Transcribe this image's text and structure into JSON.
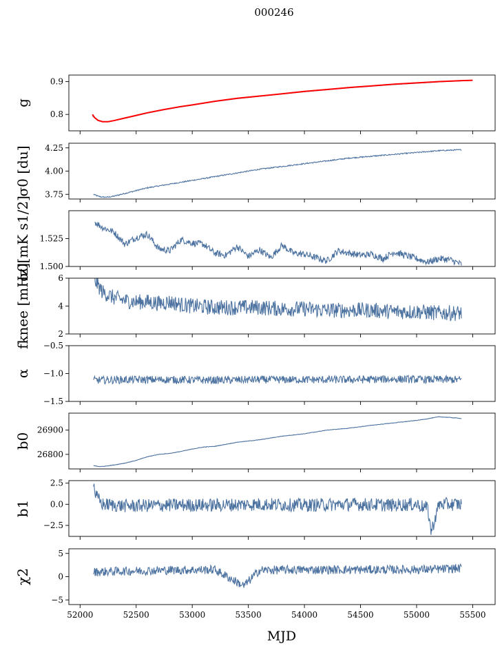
{
  "figure": {
    "title": "000246",
    "xlabel": "MJD",
    "xlim": [
      51900,
      55700
    ],
    "xticks": [
      52000,
      52500,
      53000,
      53500,
      54000,
      54500,
      55000,
      55500
    ],
    "line_color": "#4c72a0",
    "fit_color": "#ff0000"
  },
  "chart_data": [
    {
      "type": "line",
      "ylabel": "g",
      "ylim": [
        0.75,
        0.92
      ],
      "yticks": [
        0.8,
        0.9
      ],
      "ytick_labels": [
        "0.8",
        "0.9"
      ],
      "series": [
        {
          "name": "",
          "color": "#4c72a0",
          "x": [
            52110,
            52130,
            52160,
            52200,
            52250,
            52300,
            52400,
            52500,
            52600,
            52750,
            52900,
            53000,
            53200,
            53400,
            53600,
            53800,
            54000,
            54200,
            54400,
            54600,
            54800,
            55000,
            55200,
            55400
          ],
          "y": [
            0.795,
            0.79,
            0.782,
            0.778,
            0.778,
            0.781,
            0.788,
            0.796,
            0.804,
            0.814,
            0.823,
            0.828,
            0.839,
            0.848,
            0.855,
            0.862,
            0.869,
            0.875,
            0.881,
            0.886,
            0.891,
            0.895,
            0.899,
            0.902
          ]
        },
        {
          "name": "",
          "color": "#ff0000",
          "x": [
            52110,
            52130,
            52160,
            52200,
            52250,
            52300,
            52400,
            52500,
            52600,
            52750,
            52900,
            53000,
            53200,
            53400,
            53600,
            53800,
            54000,
            54200,
            54400,
            54600,
            54800,
            55000,
            55200,
            55400,
            55500
          ],
          "y": [
            0.8,
            0.79,
            0.782,
            0.778,
            0.778,
            0.781,
            0.789,
            0.797,
            0.805,
            0.815,
            0.824,
            0.829,
            0.84,
            0.849,
            0.856,
            0.863,
            0.87,
            0.876,
            0.882,
            0.887,
            0.892,
            0.896,
            0.9,
            0.903,
            0.904
          ]
        }
      ]
    },
    {
      "type": "line",
      "ylabel": "σ0 [du]",
      "ylim": [
        3.7,
        4.3
      ],
      "yticks": [
        3.75,
        4.0,
        4.25
      ],
      "ytick_labels": [
        "3.75",
        "4.00",
        "4.25"
      ],
      "series": [
        {
          "name": "",
          "color": "#4c72a0",
          "x": [
            52120,
            52160,
            52200,
            52250,
            52300,
            52400,
            52500,
            52600,
            52700,
            52850,
            53000,
            53200,
            53400,
            53600,
            53800,
            54000,
            54200,
            54400,
            54600,
            54800,
            55000,
            55200,
            55400
          ],
          "y": [
            3.75,
            3.73,
            3.72,
            3.72,
            3.73,
            3.76,
            3.79,
            3.82,
            3.84,
            3.87,
            3.9,
            3.94,
            3.98,
            4.02,
            4.05,
            4.08,
            4.11,
            4.14,
            4.16,
            4.18,
            4.2,
            4.22,
            4.23
          ]
        }
      ]
    },
    {
      "type": "line",
      "ylabel": "σ0[mK s1/2]",
      "ylim": [
        1.5,
        1.55
      ],
      "yticks": [
        1.5,
        1.525
      ],
      "ytick_labels": [
        "1.500",
        "1.525"
      ],
      "series": [
        {
          "name": "",
          "color": "#4c72a0",
          "x": [
            52130,
            52200,
            52300,
            52400,
            52500,
            52600,
            52700,
            52800,
            52900,
            53000,
            53100,
            53200,
            53300,
            53400,
            53500,
            53600,
            53700,
            53800,
            53900,
            54000,
            54100,
            54200,
            54300,
            54400,
            54500,
            54600,
            54700,
            54800,
            54900,
            55000,
            55100,
            55200,
            55300,
            55400
          ],
          "y": [
            1.54,
            1.535,
            1.531,
            1.52,
            1.526,
            1.529,
            1.516,
            1.514,
            1.524,
            1.521,
            1.52,
            1.512,
            1.51,
            1.518,
            1.509,
            1.515,
            1.508,
            1.519,
            1.512,
            1.511,
            1.508,
            1.505,
            1.514,
            1.512,
            1.51,
            1.511,
            1.507,
            1.513,
            1.51,
            1.507,
            1.504,
            1.507,
            1.506,
            1.502
          ]
        }
      ]
    },
    {
      "type": "line",
      "ylabel": "fknee [mHz]",
      "ylim": [
        2,
        6
      ],
      "yticks": [
        2,
        4,
        6
      ],
      "ytick_labels": [
        "2",
        "4",
        "6"
      ],
      "series": [
        {
          "name": "",
          "color": "#4c72a0",
          "x": [
            52120,
            52200,
            52300,
            52400,
            52500,
            52600,
            52700,
            52800,
            52900,
            53000,
            53200,
            53400,
            53600,
            53800,
            54000,
            54200,
            54400,
            54600,
            54800,
            55000,
            55200,
            55400
          ],
          "y": [
            6.0,
            5.0,
            4.6,
            4.4,
            4.3,
            4.3,
            4.2,
            4.3,
            4.1,
            4.0,
            3.9,
            3.9,
            3.9,
            3.8,
            3.8,
            3.7,
            3.7,
            3.7,
            3.6,
            3.6,
            3.5,
            3.5
          ]
        }
      ]
    },
    {
      "type": "line",
      "ylabel": "α",
      "ylim": [
        -1.5,
        -0.5
      ],
      "yticks": [
        -1.5,
        -1.0,
        -0.5
      ],
      "ytick_labels": [
        "−1.5",
        "−1.0",
        "−0.5"
      ],
      "series": [
        {
          "name": "",
          "color": "#4c72a0",
          "x": [
            52120,
            52400,
            52800,
            53200,
            53600,
            54000,
            54400,
            54800,
            55200,
            55400
          ],
          "y": [
            -1.12,
            -1.11,
            -1.11,
            -1.12,
            -1.11,
            -1.11,
            -1.11,
            -1.1,
            -1.11,
            -1.11
          ]
        }
      ]
    },
    {
      "type": "line",
      "ylabel": "b0",
      "ylim": [
        26740,
        26970
      ],
      "yticks": [
        26800,
        26900
      ],
      "ytick_labels": [
        "26800",
        "26900"
      ],
      "series": [
        {
          "name": "",
          "color": "#4c72a0",
          "x": [
            52120,
            52160,
            52200,
            52300,
            52400,
            52500,
            52600,
            52700,
            52800,
            52900,
            53000,
            53100,
            53200,
            53400,
            53600,
            53800,
            54000,
            54200,
            54400,
            54600,
            54800,
            55000,
            55100,
            55200,
            55300,
            55400
          ],
          "y": [
            26754,
            26750,
            26750,
            26756,
            26764,
            26775,
            26790,
            26800,
            26804,
            26812,
            26822,
            26830,
            26833,
            26850,
            26860,
            26875,
            26885,
            26900,
            26908,
            26920,
            26930,
            26940,
            26947,
            26955,
            26952,
            26948
          ]
        }
      ]
    },
    {
      "type": "line",
      "ylabel": "b1",
      "ylim": [
        -3.8,
        2.8
      ],
      "yticks": [
        -2.5,
        0.0,
        2.5
      ],
      "ytick_labels": [
        "−2.5",
        "0.0",
        "2.5"
      ],
      "series": [
        {
          "name": "",
          "color": "#4c72a0",
          "x": [
            52120,
            52140,
            52200,
            52400,
            52800,
            53200,
            53600,
            54000,
            54400,
            54800,
            55000,
            55100,
            55130,
            55200,
            55400
          ],
          "y": [
            2.5,
            1.0,
            0.0,
            -0.2,
            -0.1,
            -0.1,
            0.0,
            -0.1,
            0.0,
            -0.1,
            0.0,
            -0.5,
            -3.3,
            0.0,
            0.0
          ]
        }
      ]
    },
    {
      "type": "line",
      "ylabel": "χ2",
      "ylim": [
        -6,
        6
      ],
      "yticks": [
        -5,
        0,
        5
      ],
      "ytick_labels": [
        "−5",
        "0",
        "5"
      ],
      "series": [
        {
          "name": "",
          "color": "#4c72a0",
          "x": [
            52120,
            52400,
            52800,
            53200,
            53460,
            53600,
            54000,
            54400,
            54800,
            55200,
            55400
          ],
          "y": [
            1.0,
            1.2,
            1.4,
            1.5,
            -2.0,
            1.4,
            1.5,
            1.5,
            1.5,
            1.6,
            1.8
          ]
        }
      ]
    }
  ]
}
